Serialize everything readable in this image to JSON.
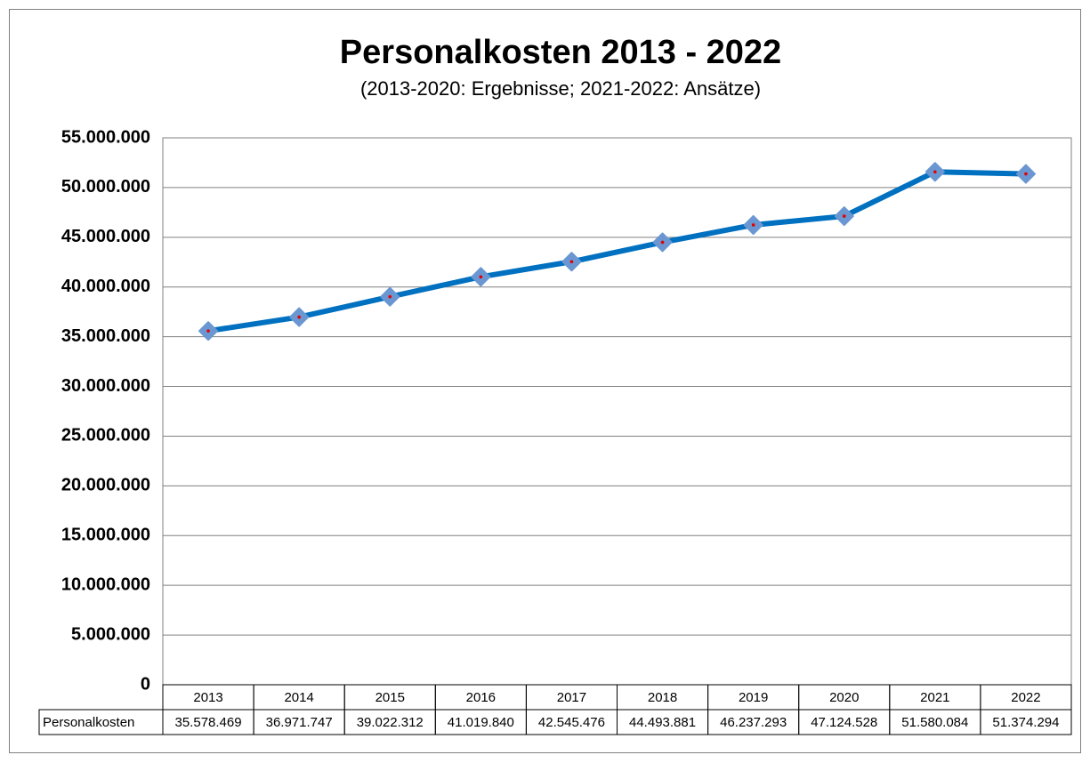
{
  "chart_data": {
    "type": "line",
    "title": "Personalkosten 2013 - 2022",
    "subtitle": "(2013-2020: Ergebnisse; 2021-2022: Ansätze)",
    "categories": [
      "2013",
      "2014",
      "2015",
      "2016",
      "2017",
      "2018",
      "2019",
      "2020",
      "2021",
      "2022"
    ],
    "series": [
      {
        "name": "Personalkosten",
        "color": "#0070c0",
        "marker_color": "#6a96d2",
        "values": [
          35578469,
          36971747,
          39022312,
          41019840,
          42545476,
          44493881,
          46237293,
          47124528,
          51580084,
          51374294
        ],
        "value_labels": [
          "35.578.469",
          "36.971.747",
          "39.022.312",
          "41.019.840",
          "42.545.476",
          "44.493.881",
          "46.237.293",
          "47.124.528",
          "51.580.084",
          "51.374.294"
        ]
      }
    ],
    "ylim": [
      0,
      55000000
    ],
    "yticks": [
      0,
      {
        "value": 5000000,
        "label": "5.000.000"
      },
      {
        "value": 10000000,
        "label": "10.000.000"
      },
      {
        "value": 15000000,
        "label": "15.000.000"
      },
      {
        "value": 20000000,
        "label": "20.000.000"
      },
      {
        "value": 25000000,
        "label": "25.000.000"
      },
      {
        "value": 30000000,
        "label": "30.000.000"
      },
      {
        "value": 35000000,
        "label": "35.000.000"
      },
      {
        "value": 40000000,
        "label": "40.000.000"
      },
      {
        "value": 45000000,
        "label": "45.000.000"
      },
      {
        "value": 50000000,
        "label": "50.000.000"
      },
      {
        "value": 55000000,
        "label": "55.000.000"
      }
    ],
    "grid": true,
    "data_table": true
  }
}
